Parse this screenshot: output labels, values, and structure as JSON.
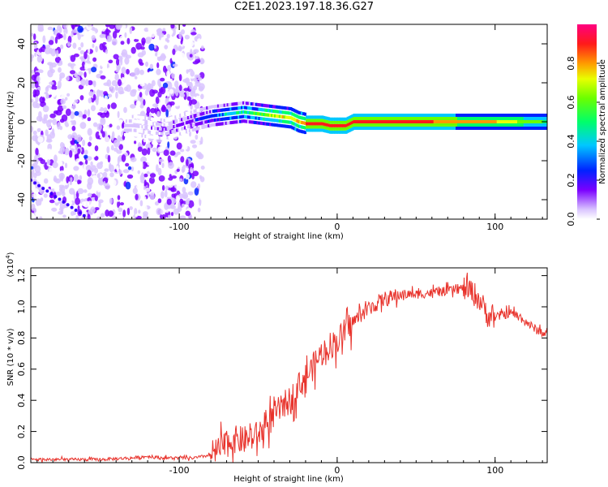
{
  "title": "C2E1.2023.197.18.36.G27",
  "chart_data": [
    {
      "type": "heatmap",
      "title": "C2E1.2023.197.18.36.G27",
      "xlabel": "Height of straight line (km)",
      "ylabel": "Frequency (Hz)",
      "xlim": [
        -194,
        133
      ],
      "ylim": [
        -50,
        50
      ],
      "xticks": [
        -100,
        0,
        100
      ],
      "yticks": [
        -40,
        -20,
        0,
        20,
        40
      ],
      "colorbar": {
        "label": "Normalized spectral amplitude",
        "range": [
          0,
          1
        ],
        "ticks": [
          0.0,
          0.2,
          0.4,
          0.6,
          0.8
        ]
      },
      "ridge": {
        "x": [
          -130,
          -110,
          -90,
          -80,
          -70,
          -60,
          -50,
          -40,
          -30,
          -25,
          -20,
          -10,
          -5,
          0,
          5,
          10,
          20,
          40,
          60,
          80,
          100,
          133
        ],
        "frequency": [
          -2,
          -4,
          1,
          3,
          4,
          5,
          4,
          3,
          2,
          0,
          -1,
          -1,
          -2,
          -2,
          -2,
          0,
          0,
          0,
          0,
          0,
          0,
          0
        ],
        "amplitude": [
          0.15,
          0.2,
          0.3,
          0.4,
          0.55,
          0.6,
          0.7,
          0.8,
          0.85,
          0.9,
          0.9,
          0.9,
          0.9,
          0.95,
          0.95,
          0.95,
          0.9,
          0.9,
          0.9,
          0.85,
          0.8,
          0.6
        ]
      }
    },
    {
      "type": "line",
      "xlabel": "Height of straight line (km)",
      "ylabel": "SNR (10 * v/v)",
      "yscale_label": "(x10",
      "yscale_exponent": "4",
      "xlim": [
        -194,
        133
      ],
      "ylim": [
        0,
        1.25
      ],
      "xticks": [
        -100,
        0,
        100
      ],
      "yticks": [
        0.0,
        0.2,
        0.4,
        0.6,
        0.8,
        1.0,
        1.2
      ],
      "series": [
        {
          "name": "SNR",
          "color": "#e8322b",
          "x": [
            -194,
            -150,
            -130,
            -120,
            -110,
            -90,
            -80,
            -75,
            -70,
            -65,
            -60,
            -50,
            -40,
            -35,
            -30,
            -25,
            -20,
            -15,
            -10,
            -5,
            0,
            5,
            10,
            15,
            20,
            25,
            30,
            35,
            40,
            50,
            60,
            70,
            75,
            80,
            85,
            90,
            95,
            100,
            105,
            110,
            115,
            120,
            125,
            133
          ],
          "y": [
            0.02,
            0.02,
            0.03,
            0.04,
            0.03,
            0.03,
            0.05,
            0.08,
            0.12,
            0.15,
            0.14,
            0.18,
            0.3,
            0.36,
            0.4,
            0.48,
            0.55,
            0.62,
            0.7,
            0.75,
            0.78,
            0.84,
            0.9,
            0.95,
            0.99,
            1.02,
            1.05,
            1.06,
            1.08,
            1.08,
            1.09,
            1.1,
            1.11,
            1.12,
            1.1,
            1.05,
            0.95,
            0.93,
            0.95,
            0.96,
            0.94,
            0.9,
            0.86,
            0.82
          ]
        }
      ]
    }
  ]
}
